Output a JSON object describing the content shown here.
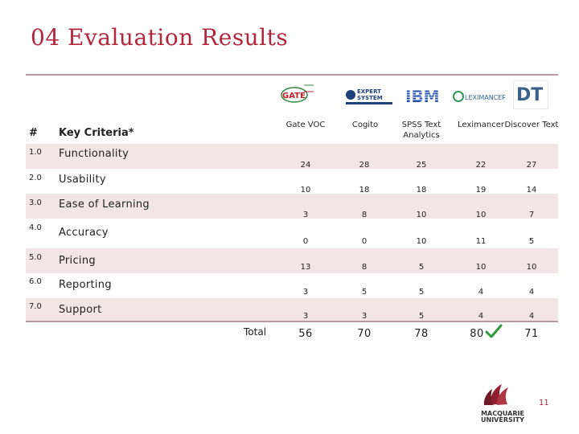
{
  "slide": {
    "title": "04  Evaluation Results",
    "page_number": "11",
    "accent_color": "#b2263a",
    "row_shade_color": "#f3e4e6"
  },
  "table": {
    "header": {
      "number": "#",
      "criteria": "Key Criteria*",
      "vendors": [
        "Gate VOC",
        "Cogito",
        "SPSS Text Analytics",
        "Leximancer",
        "Discover Text"
      ]
    },
    "rows": [
      {
        "number": "1.0",
        "criteria": "Functionality",
        "scores": [
          "24",
          "28",
          "25",
          "22",
          "27"
        ]
      },
      {
        "number": "2.0",
        "criteria": "Usability",
        "scores": [
          "10",
          "18",
          "18",
          "19",
          "14"
        ]
      },
      {
        "number": "3.0",
        "criteria": "Ease of Learning",
        "scores": [
          "3",
          "8",
          "10",
          "10",
          "7"
        ]
      },
      {
        "number": "4.0",
        "criteria": "Accuracy",
        "scores": [
          "0",
          "0",
          "10",
          "11",
          "5"
        ]
      },
      {
        "number": "5.0",
        "criteria": "Pricing",
        "scores": [
          "13",
          "8",
          "5",
          "10",
          "10"
        ]
      },
      {
        "number": "6.0",
        "criteria": "Reporting",
        "scores": [
          "3",
          "5",
          "5",
          "4",
          "4"
        ]
      },
      {
        "number": "7.0",
        "criteria": "Support",
        "scores": [
          "3",
          "3",
          "5",
          "4",
          "4"
        ]
      }
    ],
    "total_label": "Total",
    "totals": [
      "56",
      "70",
      "78",
      "80",
      "71"
    ],
    "winner_marker": "check-icon"
  },
  "logos": {
    "gate": {
      "icon": "gate-logo",
      "text": "GATE"
    },
    "expert_system": {
      "icon": "expert-system-logo",
      "line1": "EXPERT",
      "line2": "SYSTEM"
    },
    "ibm": {
      "icon": "ibm-logo",
      "text": "IBM"
    },
    "leximancer": {
      "icon": "leximancer-logo",
      "text": "LEXIMANCER"
    },
    "discovertext": {
      "icon": "discovertext-logo",
      "text": "DT"
    },
    "university": {
      "icon": "macquarie-logo",
      "line1": "MACQUARIE",
      "line2": "UNIVERSITY"
    }
  }
}
